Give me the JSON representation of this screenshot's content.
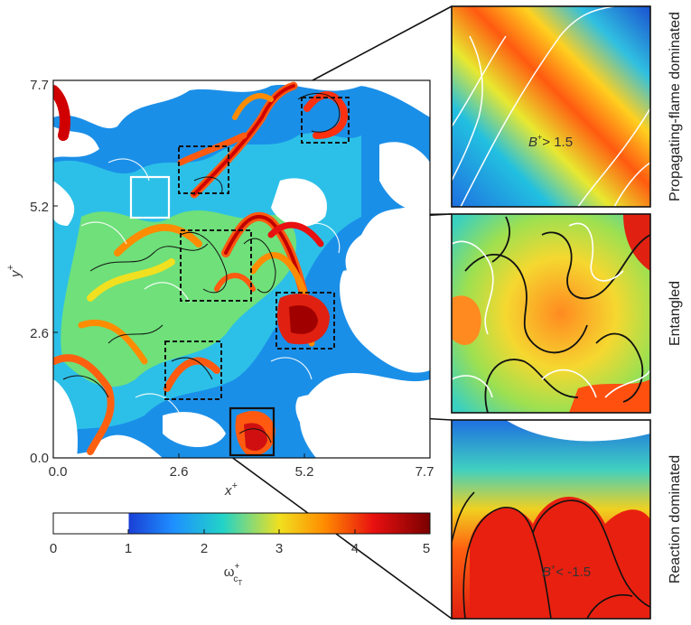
{
  "main_plot": {
    "x_axis_label": "x",
    "x_axis_sup": "+",
    "y_axis_label": "y",
    "y_axis_sup": "+",
    "x_ticks": [
      "0.0",
      "2.6",
      "5.2",
      "7.7"
    ],
    "y_ticks": [
      "0.0",
      "2.6",
      "5.2",
      "7.7"
    ],
    "x_range": [
      0,
      7.7
    ],
    "y_range": [
      0,
      7.7
    ]
  },
  "colorbar": {
    "ticks": [
      "0",
      "1",
      "2",
      "3",
      "4",
      "5"
    ],
    "range": [
      0,
      5
    ],
    "label_main": "ω",
    "label_sup": "+",
    "label_sub": "c",
    "label_subsub": "T",
    "colors": [
      "#ffffff",
      "#1a3fd6",
      "#1e90ff",
      "#22d3c8",
      "#f0e020",
      "#ff8c00",
      "#e81010",
      "#7a0000"
    ]
  },
  "insets": [
    {
      "side_label": "Propagating-flame dominated",
      "annotation_sym": "B",
      "annotation_sup": "+",
      "annotation_rest": "> 1.5"
    },
    {
      "side_label": "Entangled",
      "annotation_sym": "",
      "annotation_sup": "",
      "annotation_rest": ""
    },
    {
      "side_label": "Reaction dominated",
      "annotation_sym": "B",
      "annotation_sup": "+",
      "annotation_rest": "< -1.5"
    }
  ]
}
